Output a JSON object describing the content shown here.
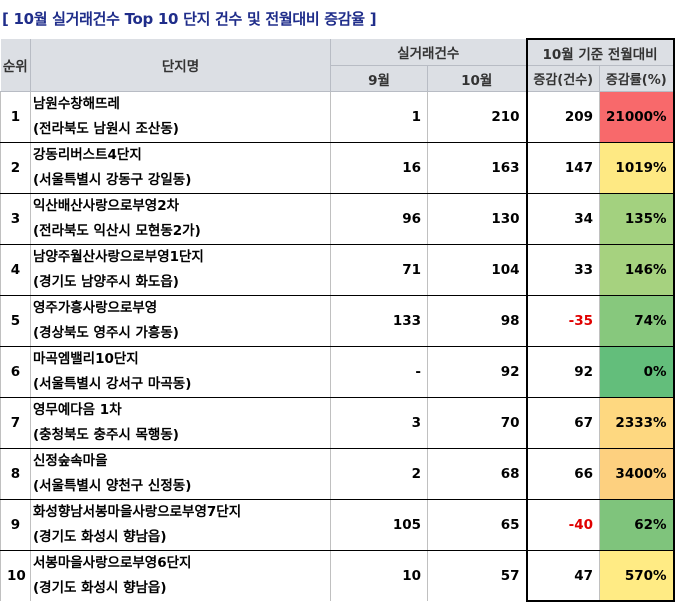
{
  "title": "[ 10월 실거래건수 Top 10 단지 건수 및 전월대비 증감율 ]",
  "header": {
    "rank": "순위",
    "complex": "단지명",
    "trades": "실거래건수",
    "sep": "9월",
    "oct": "10월",
    "compare": "10월 기준 전월대비",
    "change_count": "증감(건수)",
    "change_rate": "증감률(%)"
  },
  "colors": {
    "title": "#1f2d8a",
    "red": "#f8696b",
    "yellow": "#ffeb84",
    "light_green": "#b1d580",
    "green": "#63be7b",
    "orange": "#fed880",
    "negative_text": "#e00000"
  },
  "rows": [
    {
      "rank": "1",
      "name": "남원수창해뜨레",
      "addr": "(전라북도 남원시 조산동)",
      "sep": "1",
      "oct": "210",
      "diff": "209",
      "rate": "21000%",
      "rate_color": "#f8696b",
      "negative": false
    },
    {
      "rank": "2",
      "name": "강동리버스트4단지",
      "addr": "(서울특별시 강동구 강일동)",
      "sep": "16",
      "oct": "163",
      "diff": "147",
      "rate": "1019%",
      "rate_color": "#fee983",
      "negative": false
    },
    {
      "rank": "3",
      "name": "익산배산사랑으로부영2차",
      "addr": "(전라북도 익산시 모현동2가)",
      "sep": "96",
      "oct": "130",
      "diff": "34",
      "rate": "135%",
      "rate_color": "#a3d17f",
      "negative": false
    },
    {
      "rank": "4",
      "name": "남양주월산사랑으로부영1단지",
      "addr": "(경기도 남양주시 화도읍)",
      "sep": "71",
      "oct": "104",
      "diff": "33",
      "rate": "146%",
      "rate_color": "#a6d27f",
      "negative": false
    },
    {
      "rank": "5",
      "name": "영주가흥사랑으로부영",
      "addr": "(경상북도 영주시 가흥동)",
      "sep": "133",
      "oct": "98",
      "diff": "-35",
      "rate": "74%",
      "rate_color": "#87c87d",
      "negative": true
    },
    {
      "rank": "6",
      "name": "마곡엠밸리10단지",
      "addr": "(서울특별시 강서구 마곡동)",
      "sep": "-",
      "oct": "92",
      "diff": "92",
      "rate": "0%",
      "rate_color": "#63be7b",
      "negative": false
    },
    {
      "rank": "7",
      "name": "영무예다음 1차",
      "addr": "(충청북도 충주시 목행동)",
      "sep": "3",
      "oct": "70",
      "diff": "67",
      "rate": "2333%",
      "rate_color": "#fed880",
      "negative": false
    },
    {
      "rank": "8",
      "name": "신정숲속마을",
      "addr": "(서울특별시 양천구 신정동)",
      "sep": "2",
      "oct": "68",
      "diff": "66",
      "rate": "3400%",
      "rate_color": "#fdd07f",
      "negative": false
    },
    {
      "rank": "9",
      "name": "화성향남서봉마을사랑으로부영7단지",
      "addr": "(경기도 화성시 향남읍)",
      "sep": "105",
      "oct": "65",
      "diff": "-40",
      "rate": "62%",
      "rate_color": "#7fc47c",
      "negative": true
    },
    {
      "rank": "10",
      "name": "서봉마을사랑으로부영6단지",
      "addr": "(경기도 화성시 향남읍)",
      "sep": "10",
      "oct": "57",
      "diff": "47",
      "rate": "570%",
      "rate_color": "#ffeb84",
      "negative": false
    }
  ]
}
